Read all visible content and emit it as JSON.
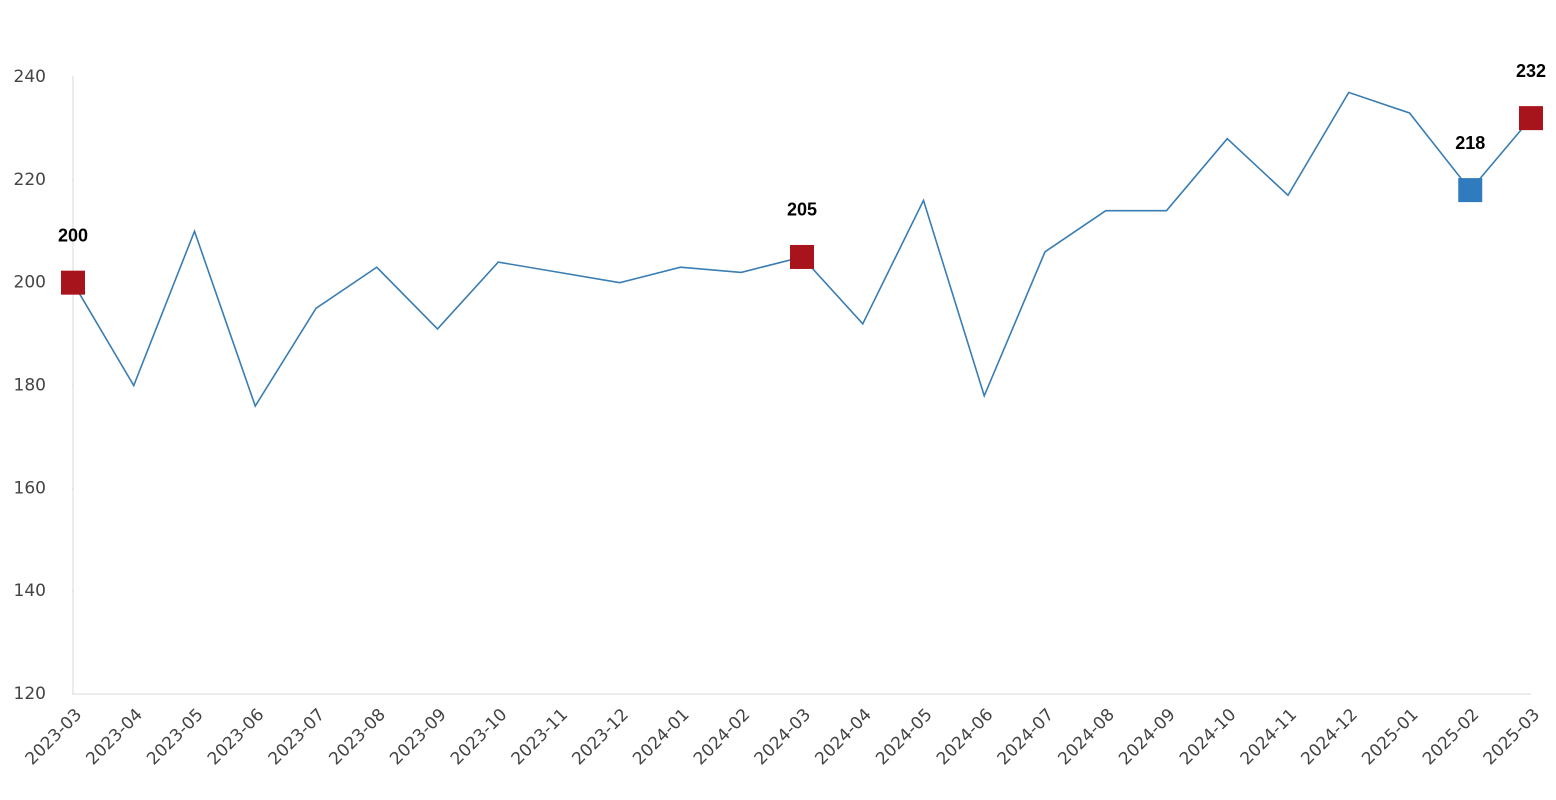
{
  "chart_data": {
    "type": "line",
    "categories": [
      "2023-03",
      "2023-04",
      "2023-05",
      "2023-06",
      "2023-07",
      "2023-08",
      "2023-09",
      "2023-10",
      "2023-11",
      "2023-12",
      "2024-01",
      "2024-02",
      "2024-03",
      "2024-04",
      "2024-05",
      "2024-06",
      "2024-07",
      "2024-08",
      "2024-09",
      "2024-10",
      "2024-11",
      "2024-12",
      "2025-01",
      "2025-02",
      "2025-03"
    ],
    "series": [
      {
        "color": "#3a7db3",
        "values": [
          200,
          180,
          210,
          176,
          195,
          203,
          191,
          204,
          202,
          200,
          203,
          202,
          205,
          192,
          216,
          178,
          206,
          214,
          214,
          228,
          217,
          237,
          233,
          218,
          232
        ],
        "marker_colors": [
          "#a8141c",
          null,
          null,
          null,
          null,
          null,
          null,
          null,
          null,
          null,
          null,
          null,
          "#a8141c",
          null,
          null,
          null,
          null,
          null,
          null,
          null,
          null,
          null,
          null,
          "#2f7bbd",
          "#a8141c"
        ]
      }
    ],
    "ylim": [
      120,
      240
    ],
    "yticks": [
      120,
      140,
      160,
      180,
      200,
      220,
      240
    ],
    "grid": false
  }
}
